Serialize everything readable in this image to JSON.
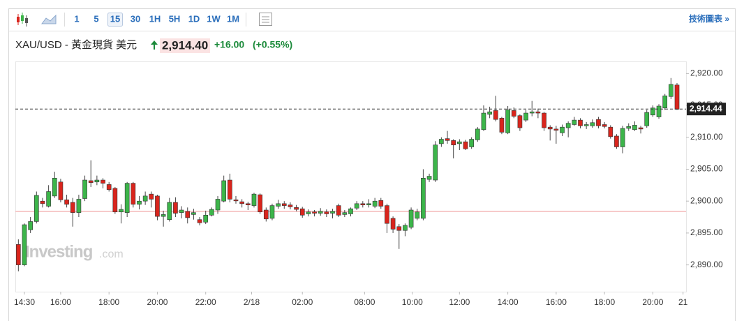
{
  "toolbar": {
    "intervals": [
      "1",
      "5",
      "15",
      "30",
      "1H",
      "5H",
      "1D",
      "1W",
      "1M"
    ],
    "selected": 2,
    "technical_link": "技術圖表 »"
  },
  "header": {
    "symbol": "XAU/USD - 黃金現貨 美元",
    "price": "2,914.40",
    "change": "+16.00",
    "change_pct": "(+0.55%)"
  },
  "chart_data": {
    "type": "candlestick",
    "up_color": "#3cb54a",
    "down_color": "#d9251d",
    "open": [
      2893.2,
      2890,
      2895.5,
      2896.8,
      2900,
      2899.2,
      2900.8,
      2903,
      2900.2,
      2899.8,
      2898.2,
      2900.4,
      2903.2,
      2903,
      2903.3,
      2902.6,
      2902,
      2898.3,
      2898.2,
      2902.8,
      2899.5,
      2900,
      2901.1,
      2900.8,
      2897.6,
      2897.1,
      2899.8,
      2898.2,
      2898.4,
      2897.9,
      2897.1,
      2896.7,
      2897.8,
      2898.6,
      2900,
      2903.3,
      2900.2,
      2899.9,
      2899.6,
      2899.3,
      2901,
      2898.6,
      2897.3,
      2899.2,
      2899.6,
      2899.4,
      2899,
      2898.8,
      2898,
      2898.3,
      2898.1,
      2898.3,
      2898.1,
      2899.3,
      2897.9,
      2898,
      2898.9,
      2899.6,
      2899.4,
      2899.2,
      2900.1,
      2899.3,
      2897.3,
      2896,
      2895.4,
      2895.9,
      2897.3,
      2897.3,
      2903.4,
      2903.3,
      2909,
      2909.8,
      2909.5,
      2909,
      2909.3,
      2908.5,
      2909.6,
      2911.2,
      2913.6,
      2914.2,
      2913,
      2910.7,
      2914.2,
      2913.4,
      2912.7,
      2913.8,
      2914,
      2913.8,
      2911.6,
      2911.3,
      2910.7,
      2911.5,
      2912,
      2912.7,
      2911.8,
      2911.8,
      2912.8,
      2912,
      2911.6,
      2910.2,
      2908.5,
      2911.4,
      2911.2,
      2911.5,
      2911.8,
      2913.5,
      2913.2,
      2914.6,
      2916.4,
      2918.2
    ],
    "high": [
      2894,
      2896.5,
      2897.5,
      2901.5,
      2900.5,
      2902.5,
      2904.6,
      2903.5,
      2901,
      2900.5,
      2901,
      2904,
      2906.4,
      2904,
      2903.6,
      2903,
      2902.2,
      2899.5,
      2903,
      2903,
      2900.8,
      2901.5,
      2901.5,
      2901,
      2898.5,
      2900.5,
      2900.6,
      2899.2,
      2899,
      2898.8,
      2897.5,
      2898.5,
      2899,
      2900.8,
      2904,
      2904.3,
      2900.8,
      2900.3,
      2899.9,
      2901.3,
      2901.2,
      2899,
      2899.6,
      2900.2,
      2900,
      2899.8,
      2899.4,
      2899.1,
      2898.7,
      2898.6,
      2898.9,
      2898.7,
      2898.8,
      2899.6,
      2898.6,
      2899,
      2900,
      2900,
      2900.3,
      2900.5,
      2900.5,
      2899.6,
      2897.6,
      2896.4,
      2896.5,
      2899,
      2898.8,
      2905,
      2904.3,
      2909.4,
      2910,
      2911,
      2909.7,
      2909.7,
      2909.6,
      2910,
      2911.6,
      2915,
      2914.8,
      2916.5,
      2913.2,
      2914.9,
      2914.7,
      2913.6,
      2914.3,
      2915.7,
      2914.5,
      2914,
      2911.9,
      2911.8,
      2912,
      2912.5,
      2913.2,
      2913,
      2912.4,
      2912.8,
      2913.2,
      2912.4,
      2911.9,
      2910.5,
      2911.8,
      2912.2,
      2912.5,
      2911.8,
      2914.3,
      2915,
      2915.2,
      2916.8,
      2919.3,
      2918.5
    ],
    "low": [
      2889,
      2889.8,
      2895,
      2896.5,
      2899,
      2899,
      2900.5,
      2899.8,
      2899,
      2896,
      2897.5,
      2900,
      2902.2,
      2902.5,
      2902,
      2901.5,
      2898,
      2896.5,
      2897.5,
      2899,
      2898.7,
      2899.4,
      2899,
      2897,
      2896,
      2896.8,
      2897.5,
      2897.3,
      2896.5,
      2897.1,
      2896.2,
      2896.4,
      2897.6,
      2898,
      2899.8,
      2899.8,
      2899.6,
      2899,
      2898.6,
      2899,
      2898,
      2896.8,
      2897,
      2898.8,
      2898.8,
      2898.7,
      2898.4,
      2897.4,
      2897.6,
      2897.6,
      2897.7,
      2897.5,
      2897.3,
      2897.5,
      2897.5,
      2897.6,
      2898.6,
      2899,
      2899,
      2898.9,
      2898.8,
      2895,
      2895,
      2892.5,
      2894.5,
      2895.6,
      2897,
      2897,
      2903,
      2903,
      2908.5,
      2909,
      2906.7,
      2908,
      2908,
      2908.2,
      2909.3,
      2911,
      2913,
      2912.5,
      2910.5,
      2910.5,
      2913,
      2911,
      2912.4,
      2913.3,
      2913,
      2911,
      2909.5,
      2909,
      2910.2,
      2910,
      2911.8,
      2911.4,
      2911.3,
      2911.5,
      2911.4,
      2911.4,
      2909.8,
      2908.2,
      2907.5,
      2911,
      2911,
      2910.6,
      2911.5,
      2913.2,
      2912.9,
      2914.3,
      2916,
      2914.3
    ],
    "close": [
      2890,
      2896.3,
      2896.8,
      2900.9,
      2899.6,
      2901.5,
      2903.6,
      2900.2,
      2899.5,
      2898.2,
      2900.3,
      2903.3,
      2902.9,
      2903.3,
      2902.8,
      2901.8,
      2898.3,
      2898.7,
      2902.8,
      2899.5,
      2900,
      2900.8,
      2900.3,
      2897.6,
      2897.9,
      2899.8,
      2898.1,
      2898.6,
      2897.4,
      2898.2,
      2896.6,
      2897.8,
      2898.7,
      2900.3,
      2903.2,
      2900.3,
      2900.1,
      2899.6,
      2899.4,
      2901.1,
      2898.3,
      2897.2,
      2899.3,
      2899.6,
      2899.3,
      2899.1,
      2898.7,
      2897.8,
      2898.3,
      2898.1,
      2898.4,
      2898,
      2898.4,
      2897.8,
      2898.2,
      2898.8,
      2899.6,
      2899.4,
      2899.6,
      2900,
      2899.2,
      2896.5,
      2895.6,
      2895.4,
      2896.2,
      2898.6,
      2898.3,
      2903.6,
      2903.9,
      2908.8,
      2909.7,
      2909.5,
      2908.8,
      2909.3,
      2908.2,
      2909.7,
      2911.3,
      2913.8,
      2914,
      2912.8,
      2910.8,
      2914.3,
      2913.3,
      2911.5,
      2913.8,
      2914,
      2913.8,
      2911.5,
      2911.3,
      2911.1,
      2911.6,
      2912.2,
      2912.7,
      2911.8,
      2912,
      2912.3,
      2911.8,
      2911.7,
      2910.1,
      2908.5,
      2911.4,
      2911.7,
      2911.9,
      2911.3,
      2913.9,
      2914.6,
      2914.9,
      2916.5,
      2918.3,
      2914.4
    ],
    "xlim": [
      -0.5,
      110.5
    ],
    "xticks": [
      {
        "value": 1,
        "label": "14:30"
      },
      {
        "value": 7,
        "label": "16:00"
      },
      {
        "value": 15,
        "label": "18:00"
      },
      {
        "value": 23,
        "label": "20:00"
      },
      {
        "value": 31,
        "label": "22:00"
      },
      {
        "value": 38.6,
        "label": "2/18"
      },
      {
        "value": 47,
        "label": "02:00"
      },
      {
        "value": 57.3,
        "label": "08:00"
      },
      {
        "value": 65.2,
        "label": "10:00"
      },
      {
        "value": 73,
        "label": "12:00"
      },
      {
        "value": 81,
        "label": "14:00"
      },
      {
        "value": 89,
        "label": "16:00"
      },
      {
        "value": 97,
        "label": "18:00"
      },
      {
        "value": 105,
        "label": "20:00"
      },
      {
        "value": 110,
        "label": "21"
      }
    ],
    "ylim": [
      2885.8,
      2921.9
    ],
    "yticks": [
      {
        "value": 2890,
        "label": "2,890.00"
      },
      {
        "value": 2895,
        "label": "2,895.00"
      },
      {
        "value": 2900,
        "label": "2,900.00"
      },
      {
        "value": 2905,
        "label": "2,905.00"
      },
      {
        "value": 2910,
        "label": "2,910.00"
      },
      {
        "value": 2915,
        "label": "2,915.00"
      },
      {
        "value": 2920,
        "label": "2,920.00"
      }
    ],
    "last_price": {
      "value": 2914.44,
      "label": "2,914.44"
    },
    "reference_line": 2898.4,
    "watermark": {
      "brand": "Investing",
      "suffix": ".com"
    }
  }
}
